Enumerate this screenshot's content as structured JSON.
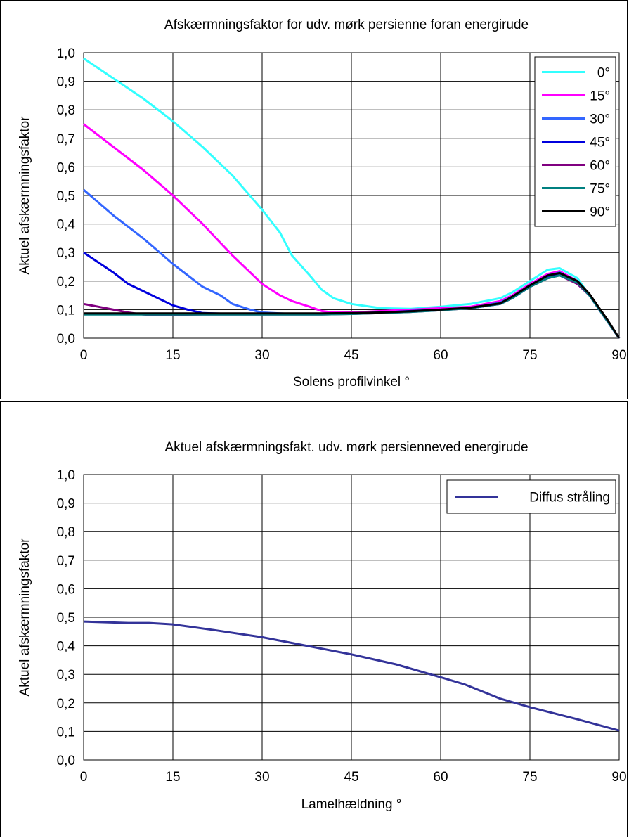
{
  "chart_data": [
    {
      "type": "line",
      "title": "Afskærmningsfaktor for udv. mørk persienne foran energirude",
      "xlabel": "Solens profilvinkel °",
      "ylabel": "Aktuel afskærmningsfaktor",
      "xlim": [
        0,
        90
      ],
      "ylim": [
        0,
        1
      ],
      "xticks": [
        "0",
        "15",
        "30",
        "45",
        "60",
        "75",
        "90"
      ],
      "yticks": [
        "0,0",
        "0,1",
        "0,2",
        "0,3",
        "0,4",
        "0,5",
        "0,6",
        "0,7",
        "0,8",
        "0,9",
        "1,0"
      ],
      "grid": true,
      "legend_position": "top-right",
      "series": [
        {
          "name": "0°",
          "color": "#33ffff",
          "x": [
            0,
            5,
            10,
            15,
            20,
            25,
            30,
            33,
            35,
            38,
            40,
            42,
            45,
            50,
            55,
            60,
            65,
            70,
            72,
            75,
            78,
            80,
            83,
            85,
            88,
            90
          ],
          "y": [
            0.98,
            0.91,
            0.84,
            0.76,
            0.67,
            0.57,
            0.45,
            0.37,
            0.29,
            0.22,
            0.17,
            0.14,
            0.12,
            0.105,
            0.103,
            0.11,
            0.12,
            0.14,
            0.16,
            0.2,
            0.24,
            0.245,
            0.21,
            0.15,
            0.06,
            0.0
          ]
        },
        {
          "name": "15°",
          "color": "#ff00ff",
          "x": [
            0,
            5,
            10,
            15,
            20,
            25,
            28,
            30,
            33,
            35,
            38,
            40,
            42,
            45,
            50,
            55,
            60,
            65,
            70,
            72,
            75,
            78,
            80,
            83,
            85,
            88,
            90
          ],
          "y": [
            0.75,
            0.67,
            0.59,
            0.5,
            0.4,
            0.29,
            0.23,
            0.19,
            0.15,
            0.13,
            0.11,
            0.095,
            0.09,
            0.09,
            0.095,
            0.1,
            0.105,
            0.11,
            0.13,
            0.15,
            0.19,
            0.225,
            0.235,
            0.2,
            0.15,
            0.06,
            0.0
          ]
        },
        {
          "name": "30°",
          "color": "#3366ff",
          "x": [
            0,
            5,
            10,
            15,
            20,
            23,
            25,
            28,
            30,
            35,
            40,
            45,
            50,
            55,
            60,
            65,
            70,
            72,
            75,
            78,
            80,
            83,
            85,
            88,
            90
          ],
          "y": [
            0.52,
            0.43,
            0.35,
            0.26,
            0.18,
            0.15,
            0.12,
            0.1,
            0.09,
            0.085,
            0.085,
            0.087,
            0.09,
            0.095,
            0.1,
            0.105,
            0.125,
            0.145,
            0.185,
            0.22,
            0.23,
            0.195,
            0.15,
            0.06,
            0.0
          ]
        },
        {
          "name": "45°",
          "color": "#0000dd",
          "x": [
            0,
            2.5,
            5,
            7.5,
            10,
            12.5,
            15,
            17.5,
            20,
            25,
            30,
            35,
            40,
            45,
            50,
            55,
            60,
            65,
            70,
            72,
            75,
            78,
            80,
            83,
            85,
            88,
            90
          ],
          "y": [
            0.3,
            0.265,
            0.23,
            0.19,
            0.165,
            0.14,
            0.115,
            0.1,
            0.088,
            0.085,
            0.085,
            0.085,
            0.085,
            0.087,
            0.09,
            0.095,
            0.1,
            0.105,
            0.12,
            0.14,
            0.18,
            0.215,
            0.225,
            0.19,
            0.15,
            0.06,
            0.0
          ]
        },
        {
          "name": "60°",
          "color": "#800080",
          "x": [
            0,
            2.5,
            5,
            7.5,
            10,
            12.5,
            15,
            20,
            25,
            30,
            35,
            40,
            45,
            50,
            55,
            60,
            65,
            70,
            72,
            75,
            78,
            80,
            83,
            85,
            88,
            90
          ],
          "y": [
            0.12,
            0.11,
            0.1,
            0.09,
            0.083,
            0.08,
            0.082,
            0.083,
            0.083,
            0.083,
            0.083,
            0.083,
            0.085,
            0.088,
            0.092,
            0.098,
            0.105,
            0.12,
            0.14,
            0.18,
            0.21,
            0.22,
            0.19,
            0.15,
            0.06,
            0.0
          ]
        },
        {
          "name": "75°",
          "color": "#008080",
          "x": [
            0,
            10,
            20,
            30,
            40,
            45,
            50,
            55,
            60,
            65,
            70,
            72,
            75,
            78,
            80,
            83,
            85,
            88,
            90
          ],
          "y": [
            0.083,
            0.083,
            0.083,
            0.083,
            0.083,
            0.085,
            0.088,
            0.092,
            0.098,
            0.105,
            0.12,
            0.14,
            0.18,
            0.21,
            0.22,
            0.195,
            0.15,
            0.06,
            0.0
          ]
        },
        {
          "name": "90°",
          "color": "#000000",
          "x": [
            0,
            10,
            20,
            30,
            40,
            45,
            50,
            55,
            60,
            65,
            70,
            72,
            75,
            78,
            80,
            83,
            85,
            88,
            90
          ],
          "y": [
            0.087,
            0.087,
            0.087,
            0.087,
            0.087,
            0.088,
            0.09,
            0.094,
            0.1,
            0.107,
            0.122,
            0.145,
            0.185,
            0.22,
            0.228,
            0.2,
            0.155,
            0.065,
            0.0
          ]
        }
      ]
    },
    {
      "type": "line",
      "title": "Aktuel afskærmningsfakt. udv. mørk persienneved energirude",
      "xlabel": "Lamelhældning °",
      "ylabel": "Aktuel afskærmningsfaktor",
      "xlim": [
        0,
        90
      ],
      "ylim": [
        0,
        1
      ],
      "xticks": [
        "0",
        "15",
        "30",
        "45",
        "60",
        "75",
        "90"
      ],
      "yticks": [
        "0,0",
        "0,1",
        "0,2",
        "0,3",
        "0,4",
        "0,5",
        "0,6",
        "0,7",
        "0,8",
        "0,9",
        "1,0"
      ],
      "grid": true,
      "legend_position": "top-right",
      "series": [
        {
          "name": "Diffus stråling",
          "color": "#333399",
          "x": [
            0,
            7.5,
            11,
            15,
            22,
            30,
            37.5,
            45,
            52.5,
            60,
            64,
            70,
            75,
            82.5,
            90
          ],
          "y": [
            0.485,
            0.48,
            0.48,
            0.475,
            0.455,
            0.43,
            0.4,
            0.37,
            0.335,
            0.29,
            0.265,
            0.215,
            0.185,
            0.145,
            0.103
          ]
        }
      ]
    }
  ]
}
